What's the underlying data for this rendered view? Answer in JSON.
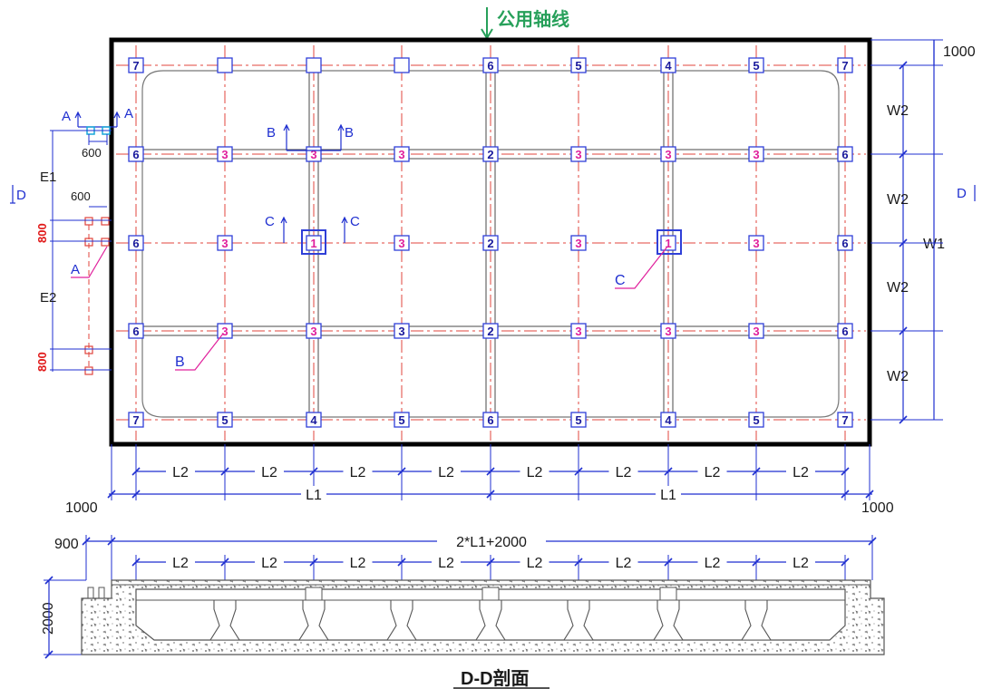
{
  "colors": {
    "outline": "#000000",
    "axis_dash": "#e0443c",
    "beam": "#4a4a4a",
    "dim": "#1f2fd0",
    "marker_box": "#2f3fd8",
    "marker_text_blue": "#1a1a9c",
    "marker_text_magenta": "#e0209c",
    "dim_red": "#e01818",
    "cyan": "#19a8d8",
    "header_green": "#27a05a",
    "concrete": "#555555"
  },
  "header": {
    "label": "公用轴线"
  },
  "grid_columns": [
    [
      "7",
      "",
      "",
      "",
      "6",
      "5",
      "4",
      "5",
      "7"
    ],
    [
      "6",
      "3",
      "3",
      "3",
      "2",
      "3",
      "3",
      "3",
      "6"
    ],
    [
      "6",
      "3",
      "1",
      "3",
      "2",
      "3",
      "1",
      "3",
      "6"
    ],
    [
      "6",
      "3",
      "3",
      "3",
      "2",
      "3",
      "3",
      "3",
      "6"
    ],
    [
      "7",
      "5",
      "4",
      "5",
      "6",
      "5",
      "4",
      "5",
      "7"
    ]
  ],
  "right_dims": {
    "top": "1000",
    "w2": [
      "W2",
      "W2",
      "W2",
      "W2"
    ],
    "w1": "W1"
  },
  "bottom_dims": {
    "l2": [
      "L2",
      "L2",
      "L2",
      "L2",
      "L2",
      "L2",
      "L2",
      "L2"
    ],
    "l1": [
      "L1",
      "L1"
    ],
    "left": "1000",
    "right": "1000"
  },
  "left_dims": {
    "e1": "E1",
    "e2": "E2",
    "w600a": "600",
    "w600b": "600",
    "h800a": "800",
    "h800b": "800"
  },
  "section_marks": {
    "a": "A",
    "b": "B",
    "c": "C",
    "d": "D"
  },
  "section": {
    "title": "D-D剖面",
    "total": "2*L1+2000",
    "left_offset": "900",
    "height": "2000",
    "l2": [
      "L2",
      "L2",
      "L2",
      "L2",
      "L2",
      "L2",
      "L2",
      "L2"
    ]
  }
}
